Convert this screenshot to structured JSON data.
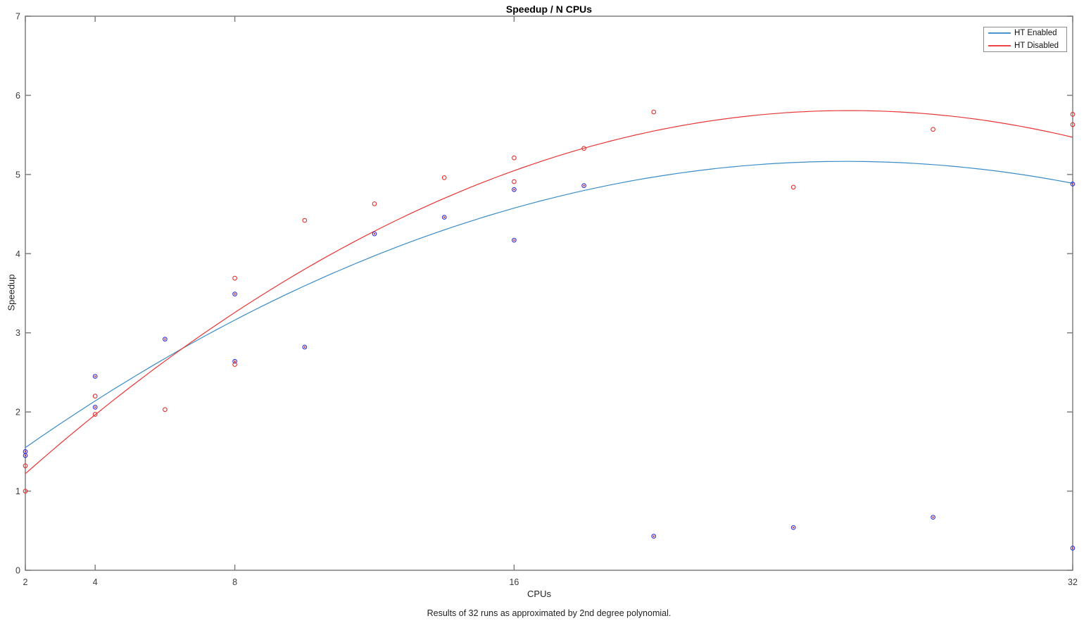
{
  "figure": {
    "title": "Speedup / N CPUs",
    "xlabel": "CPUs",
    "ylabel": "Speedup",
    "caption": "Results of 32 runs as approximated by 2nd degree polynomial."
  },
  "legend": {
    "entries": [
      {
        "label": "HT Enabled",
        "color": "#4a94cf"
      },
      {
        "label": "HT Disabled",
        "color": "#ef4444"
      }
    ]
  },
  "colors": {
    "axis": "#7f7f7f",
    "tick_label": "#3c3c3c",
    "blue_fit_line": "#3a8cc7",
    "red_fit_line": "#e83535",
    "blue_marker": "#2e2ee0",
    "blue_marker_center": "#d03030",
    "red_marker": "#e33030"
  },
  "chart_data": {
    "type": "scatter",
    "title": "Speedup / N CPUs",
    "xlabel": "CPUs",
    "ylabel": "Speedup",
    "xlim": [
      2,
      32
    ],
    "ylim": [
      0,
      7
    ],
    "x_scale": "linear",
    "x_ticks": [
      2,
      4,
      8,
      16,
      32
    ],
    "y_ticks": [
      0,
      1,
      2,
      3,
      4,
      5,
      6,
      7
    ],
    "grid": false,
    "legend_position": "top-right",
    "caption": "Results of 32 runs as approximated by 2nd degree polynomial.",
    "series": [
      {
        "name": "HT Enabled",
        "marker": "circle-with-center-dot",
        "marker_color": "#2e2ee0",
        "marker_center_color": "#d03030",
        "fit_line_color": "#3a8cc7",
        "fit_model": "2nd degree polynomial",
        "fit_coeffs": [
          0.908,
          0.334,
          -0.00655
        ],
        "points": [
          [
            2,
            1.5
          ],
          [
            2,
            1.45
          ],
          [
            4,
            2.45
          ],
          [
            4,
            2.06
          ],
          [
            6,
            2.92
          ],
          [
            8,
            3.49
          ],
          [
            8,
            2.64
          ],
          [
            10,
            2.82
          ],
          [
            12,
            4.25
          ],
          [
            14,
            4.46
          ],
          [
            16,
            4.81
          ],
          [
            16,
            4.17
          ],
          [
            18,
            4.86
          ],
          [
            20,
            0.43
          ],
          [
            24,
            0.54
          ],
          [
            28,
            0.67
          ],
          [
            32,
            4.88
          ],
          [
            32,
            0.28
          ]
        ]
      },
      {
        "name": "HT Disabled",
        "marker": "circle",
        "marker_color": "#e33030",
        "fit_line_color": "#e83535",
        "fit_model": "2nd degree polynomial",
        "fit_coeffs": [
          0.4096,
          0.4217,
          -0.008236
        ],
        "points": [
          [
            2,
            1.32
          ],
          [
            2,
            1.0
          ],
          [
            4,
            2.2
          ],
          [
            4,
            1.97
          ],
          [
            6,
            2.03
          ],
          [
            8,
            3.69
          ],
          [
            8,
            2.6
          ],
          [
            10,
            4.42
          ],
          [
            12,
            4.63
          ],
          [
            14,
            4.96
          ],
          [
            16,
            5.21
          ],
          [
            16,
            4.91
          ],
          [
            18,
            5.33
          ],
          [
            20,
            5.79
          ],
          [
            24,
            4.84
          ],
          [
            28,
            5.57
          ],
          [
            32,
            5.76
          ],
          [
            32,
            5.63
          ]
        ]
      }
    ]
  }
}
